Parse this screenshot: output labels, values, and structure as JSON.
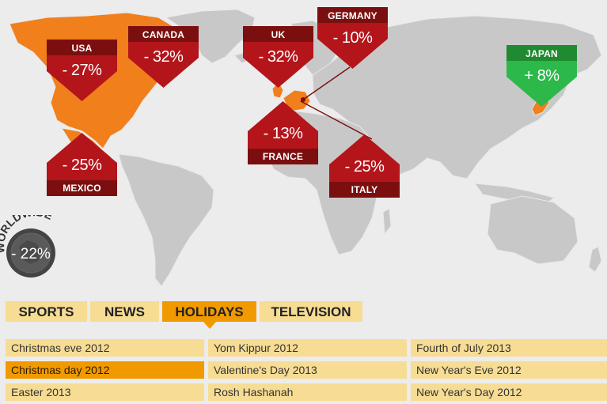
{
  "worldwide": {
    "label": "WORLDWIDE",
    "value": "- 22%"
  },
  "markers": [
    {
      "name": "USA",
      "value": "- 27%",
      "type": "down"
    },
    {
      "name": "CANADA",
      "value": "- 32%",
      "type": "down"
    },
    {
      "name": "UK",
      "value": "- 32%",
      "type": "down"
    },
    {
      "name": "GERMANY",
      "value": "- 10%",
      "type": "down"
    },
    {
      "name": "JAPAN",
      "value": "+ 8%",
      "type": "up"
    },
    {
      "name": "MEXICO",
      "value": "- 25%",
      "type": "down"
    },
    {
      "name": "FRANCE",
      "value": "- 13%",
      "type": "down"
    },
    {
      "name": "ITALY",
      "value": "- 25%",
      "type": "down"
    }
  ],
  "tabs": [
    {
      "label": "SPORTS",
      "active": false
    },
    {
      "label": "NEWS",
      "active": false
    },
    {
      "label": "HOLIDAYS",
      "active": true
    },
    {
      "label": "TELEVISION",
      "active": false
    }
  ],
  "events": [
    [
      "Christmas eve 2012",
      "Christmas day 2012",
      "Easter 2013"
    ],
    [
      "Yom Kippur 2012",
      "Valentine's Day 2013",
      "Rosh Hashanah"
    ],
    [
      "Fourth of July 2013",
      "New Year's Eve 2012",
      "New Year's Day 2012"
    ]
  ],
  "selected_event": "Christmas day 2012",
  "colors": {
    "down_dark": "#7b0f10",
    "down": "#b3151b",
    "up_dark": "#1f8a30",
    "up": "#2db84a",
    "highlight": "#f07f1c",
    "land": "#c7c7c7",
    "tab": "#f7dc94",
    "active": "#f19a00"
  }
}
